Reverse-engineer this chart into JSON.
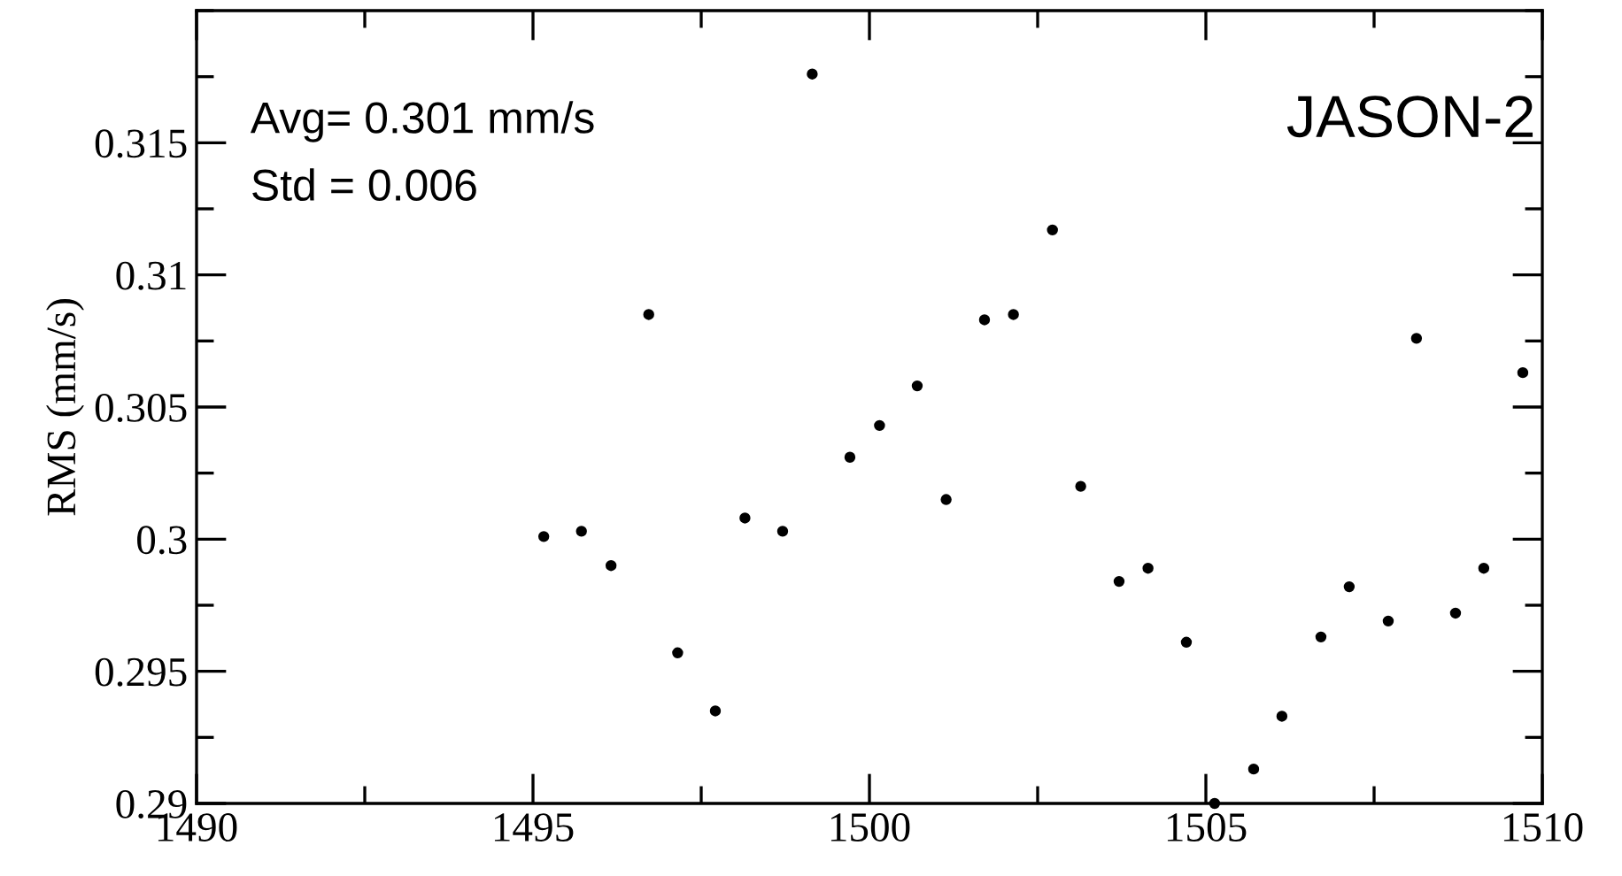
{
  "chart_data": {
    "type": "scatter",
    "ylabel": "RMS (mm/s)",
    "annotations": [
      "Avg= 0.301 mm/s",
      "Std = 0.006",
      "JASON-2"
    ],
    "x": [
      1495.16,
      1495.72,
      1496.16,
      1496.72,
      1497.15,
      1497.71,
      1498.15,
      1498.71,
      1499.15,
      1499.71,
      1500.15,
      1500.71,
      1501.14,
      1501.71,
      1502.14,
      1502.72,
      1503.14,
      1503.71,
      1504.14,
      1504.71,
      1505.13,
      1505.71,
      1506.13,
      1506.71,
      1507.13,
      1507.71,
      1508.13,
      1508.71,
      1509.13,
      1509.71
    ],
    "series": [
      {
        "color": "#000000",
        "values": [
          0.3001,
          0.3003,
          0.299,
          0.3085,
          0.2957,
          0.2935,
          0.3008,
          0.3003,
          0.3176,
          0.3031,
          0.3043,
          0.3058,
          0.3015,
          0.3083,
          0.3085,
          0.3117,
          0.302,
          0.2984,
          0.2989,
          0.2961,
          0.29,
          0.2913,
          0.2933,
          0.2963,
          0.2982,
          0.2969,
          0.3076,
          0.2972,
          0.2989,
          0.3063
        ]
      }
    ],
    "xlim": [
      1490,
      1510
    ],
    "ylim": [
      0.29,
      0.32
    ],
    "xticks": [
      1490,
      1495,
      1500,
      1505,
      1510
    ],
    "yticks": [
      0.29,
      0.295,
      0.3,
      0.305,
      0.31,
      0.315
    ],
    "marker": "circle",
    "grid": false,
    "legend": false
  }
}
